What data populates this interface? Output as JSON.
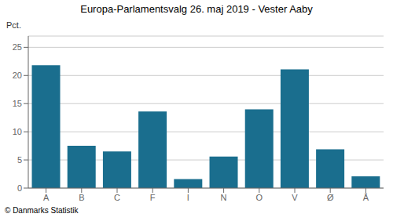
{
  "chart_data": {
    "type": "bar",
    "title": "Europa-Parlamentsvalg 26. maj 2019 - Vester Aaby",
    "categories": [
      "A",
      "B",
      "C",
      "F",
      "I",
      "N",
      "O",
      "V",
      "Ø",
      "Å"
    ],
    "values": [
      21.8,
      7.5,
      6.5,
      13.6,
      1.6,
      5.6,
      14.0,
      21.1,
      6.9,
      2.1
    ],
    "color": "#1a6e8e",
    "ylabel": "Pct.",
    "ylim": [
      0,
      27
    ],
    "yticks": [
      0,
      5,
      10,
      15,
      20,
      25
    ],
    "grid": true,
    "annotations": [
      "© Danmarks Statistik"
    ]
  }
}
